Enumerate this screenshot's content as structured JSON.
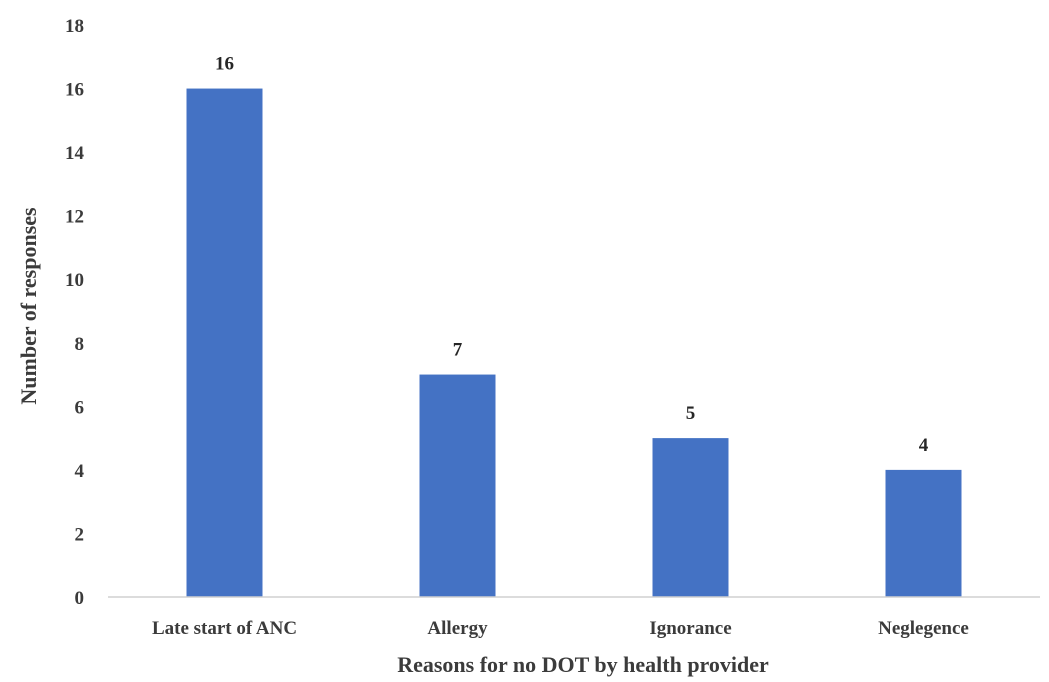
{
  "chart_data": {
    "type": "bar",
    "title": "",
    "categories": [
      "Late start of ANC",
      "Allergy",
      "Ignorance",
      "Neglegence"
    ],
    "values": [
      16,
      7,
      5,
      4
    ],
    "data_labels": [
      "16",
      "7",
      "5",
      "4"
    ],
    "xlabel": "Reasons for no DOT by health provider",
    "ylabel": "Number of responses",
    "ylim": [
      0,
      18
    ],
    "yticks": [
      "0",
      "2",
      "4",
      "6",
      "8",
      "10",
      "12",
      "14",
      "16",
      "18"
    ],
    "grid": false,
    "legend": "none",
    "colors": {
      "bar": "#4472c4",
      "axis": "#d0d0d0",
      "text": "#3b3b3b"
    }
  }
}
